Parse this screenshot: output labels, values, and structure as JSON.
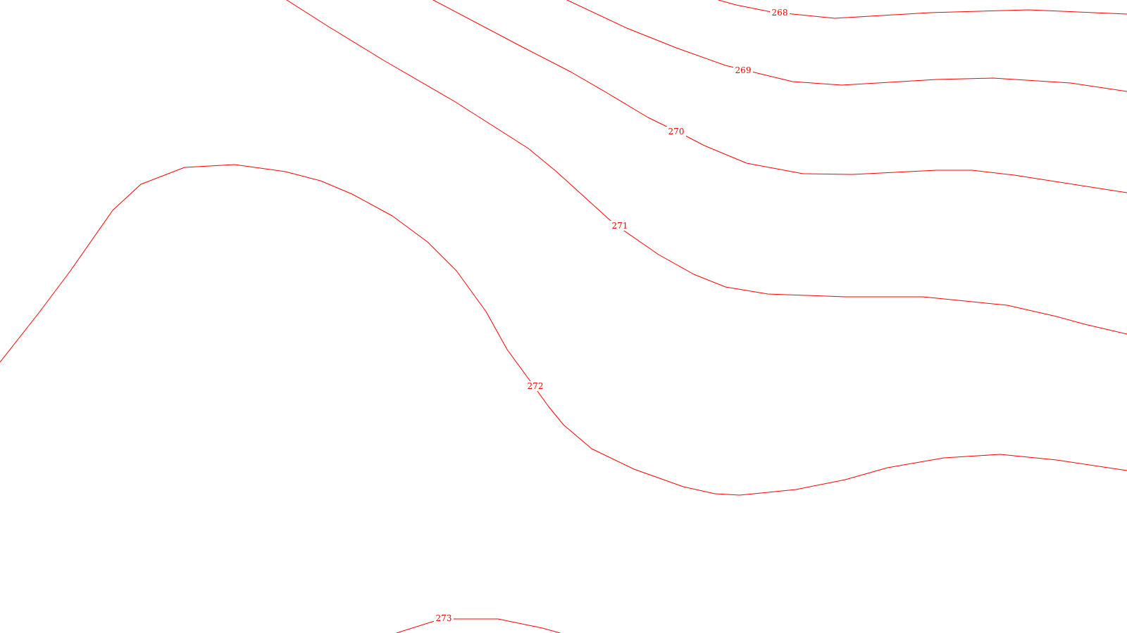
{
  "map": {
    "line_color": "#ff0000",
    "background_color": "#ffffff",
    "contours": [
      {
        "level": "268"
      },
      {
        "level": "269"
      },
      {
        "level": "270"
      },
      {
        "level": "271"
      },
      {
        "level": "272"
      },
      {
        "level": "273"
      }
    ]
  }
}
